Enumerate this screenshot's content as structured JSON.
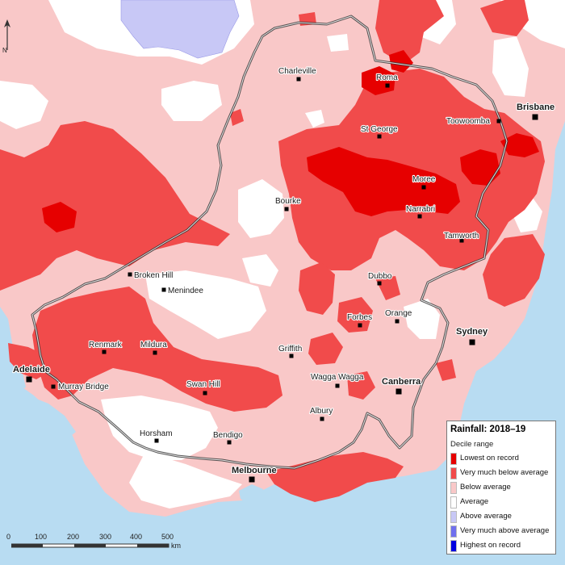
{
  "towns": [
    {
      "name": "Charleville",
      "type": "town"
    },
    {
      "name": "Roma",
      "type": "town"
    },
    {
      "name": "Toowoomba",
      "type": "town"
    },
    {
      "name": "Brisbane",
      "type": "city"
    },
    {
      "name": "St George",
      "type": "town"
    },
    {
      "name": "Moree",
      "type": "town"
    },
    {
      "name": "Narrabri",
      "type": "town"
    },
    {
      "name": "Bourke",
      "type": "town"
    },
    {
      "name": "Tamworth",
      "type": "town"
    },
    {
      "name": "Broken Hill",
      "type": "town"
    },
    {
      "name": "Menindee",
      "type": "town"
    },
    {
      "name": "Dubbo",
      "type": "town"
    },
    {
      "name": "Orange",
      "type": "town"
    },
    {
      "name": "Forbes",
      "type": "town"
    },
    {
      "name": "Sydney",
      "type": "city"
    },
    {
      "name": "Renmark",
      "type": "town"
    },
    {
      "name": "Mildura",
      "type": "town"
    },
    {
      "name": "Griffith",
      "type": "town"
    },
    {
      "name": "Adelaide",
      "type": "city"
    },
    {
      "name": "Murray Bridge",
      "type": "town"
    },
    {
      "name": "Swan Hill",
      "type": "town"
    },
    {
      "name": "Wagga Wagga",
      "type": "town"
    },
    {
      "name": "Canberra",
      "type": "city"
    },
    {
      "name": "Albury",
      "type": "town"
    },
    {
      "name": "Horsham",
      "type": "town"
    },
    {
      "name": "Bendigo",
      "type": "town"
    },
    {
      "name": "Melbourne",
      "type": "city"
    }
  ],
  "legend": {
    "title": "Rainfall: 2018–19",
    "subtitle": "Decile range",
    "items": [
      {
        "label": "Lowest on record",
        "color": "#e60000"
      },
      {
        "label": "Very much below average",
        "color": "#f14b4b"
      },
      {
        "label": "Below average",
        "color": "#f9c8c8"
      },
      {
        "label": "Average",
        "color": "#ffffff"
      },
      {
        "label": "Above average",
        "color": "#c8c8f6"
      },
      {
        "label": "Very much above average",
        "color": "#7070ee"
      },
      {
        "label": "Highest on record",
        "color": "#0000e0"
      }
    ]
  },
  "scale": {
    "ticks": [
      "0",
      "100",
      "200",
      "300",
      "400",
      "500"
    ],
    "unit": "km"
  },
  "north_label": "N",
  "colors": {
    "ocean": "#b8dcf2",
    "land_base": "#f9c8c8",
    "very_much_below": "#f14b4b",
    "lowest": "#e60000",
    "average": "#ffffff",
    "above": "#c8c8f6"
  }
}
